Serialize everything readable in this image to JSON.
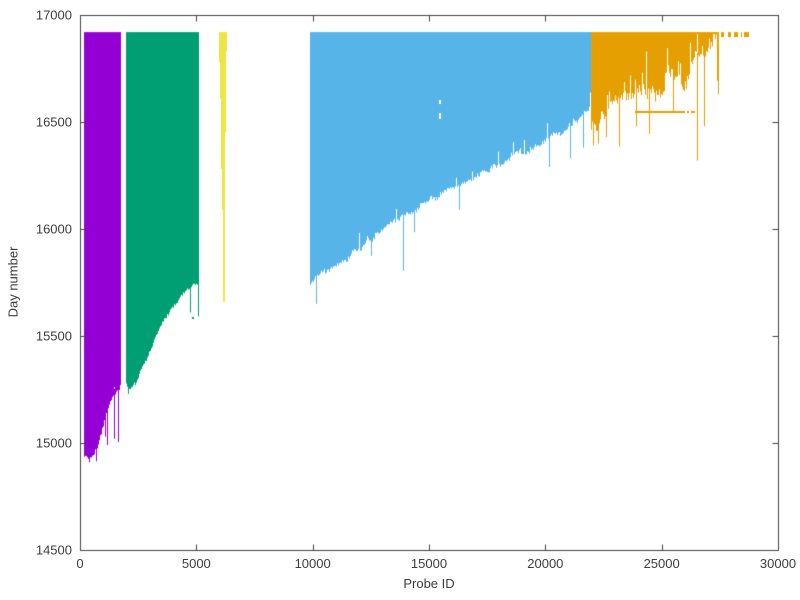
{
  "chart_data": {
    "type": "area",
    "subtype": "impulse-bands (one vertical line per probe, from first-seen day up to current day)",
    "title": "",
    "xlabel": "Probe ID",
    "ylabel": "Day number",
    "xlim": [
      0,
      30000
    ],
    "ylim": [
      14500,
      17000
    ],
    "xticks": [
      0,
      5000,
      10000,
      15000,
      20000,
      25000,
      30000
    ],
    "xtick_labels": [
      "0",
      "5000",
      "10000",
      "15000",
      "20000",
      "25000",
      "30000"
    ],
    "yticks": [
      14500,
      15000,
      15500,
      16000,
      16500,
      17000
    ],
    "ytick_labels": [
      "14500",
      "15000",
      "15500",
      "16000",
      "16500",
      "17000"
    ],
    "grid": false,
    "legend": "none",
    "frame_color": "#444444",
    "text_color": "#3d3d3d",
    "background_color": "#ffffff",
    "top_day": 16920,
    "bands": [
      {
        "name": "band-1-purple",
        "color": "#9400d3",
        "id_range": [
          170,
          1700
        ],
        "envelope": [
          [
            170,
            14940
          ],
          [
            300,
            14925
          ],
          [
            500,
            14935
          ],
          [
            700,
            14950
          ],
          [
            820,
            15000
          ],
          [
            950,
            15060
          ],
          [
            1070,
            15110
          ],
          [
            1200,
            15170
          ],
          [
            1320,
            15200
          ],
          [
            1450,
            15220
          ],
          [
            1580,
            15245
          ],
          [
            1700,
            15260
          ]
        ],
        "spikes": [
          [
            390,
            14910
          ],
          [
            700,
            14915
          ],
          [
            1080,
            15030
          ],
          [
            1160,
            14990
          ],
          [
            1480,
            15020
          ],
          [
            1620,
            15005
          ]
        ],
        "noise": 18,
        "gap_prob": 0.05,
        "gap_depth": 55,
        "seed": 11
      },
      {
        "name": "band-2-green",
        "color": "#009e73",
        "id_range": [
          1980,
          5072
        ],
        "envelope": [
          [
            1980,
            15270
          ],
          [
            2150,
            15250
          ],
          [
            2400,
            15285
          ],
          [
            2700,
            15360
          ],
          [
            3000,
            15430
          ],
          [
            3300,
            15505
          ],
          [
            3600,
            15570
          ],
          [
            3900,
            15620
          ],
          [
            4200,
            15665
          ],
          [
            4500,
            15700
          ],
          [
            4800,
            15730
          ],
          [
            5072,
            15748
          ]
        ],
        "spikes": [
          [
            2060,
            15230
          ],
          [
            4725,
            15610
          ],
          [
            5065,
            15592
          ]
        ],
        "dots": [
          [
            4810,
            15588
          ]
        ],
        "noise": 14,
        "gap_prob": 0.03,
        "gap_depth": 45,
        "seed": 22
      },
      {
        "name": "band-3-yellow",
        "color": "#f0e442",
        "impulses": [
          [
            6010,
            16780
          ],
          [
            6050,
            16610
          ],
          [
            6085,
            16500
          ],
          [
            6115,
            16280
          ],
          [
            6145,
            16090
          ],
          [
            6175,
            15860
          ],
          [
            6205,
            15660
          ],
          [
            6240,
            16450
          ],
          [
            6280,
            16830
          ]
        ],
        "seed": 33
      },
      {
        "name": "band-4-blue",
        "color": "#56b4e9",
        "id_range": [
          9900,
          21950
        ],
        "envelope": [
          [
            9900,
            15740
          ],
          [
            10200,
            15780
          ],
          [
            10600,
            15805
          ],
          [
            11000,
            15830
          ],
          [
            11400,
            15860
          ],
          [
            11900,
            15900
          ],
          [
            12400,
            15945
          ],
          [
            12900,
            15985
          ],
          [
            13400,
            16025
          ],
          [
            13900,
            16060
          ],
          [
            14400,
            16090
          ],
          [
            14900,
            16125
          ],
          [
            15400,
            16155
          ],
          [
            15900,
            16190
          ],
          [
            16400,
            16215
          ],
          [
            16900,
            16235
          ],
          [
            17400,
            16265
          ],
          [
            17900,
            16295
          ],
          [
            18400,
            16325
          ],
          [
            18900,
            16350
          ],
          [
            19400,
            16370
          ],
          [
            19900,
            16400
          ],
          [
            20300,
            16435
          ],
          [
            20700,
            16455
          ],
          [
            21100,
            16475
          ],
          [
            21400,
            16510
          ],
          [
            21700,
            16545
          ],
          [
            21950,
            16585
          ]
        ],
        "spikes": [
          [
            10150,
            15650
          ],
          [
            12500,
            15875
          ],
          [
            13900,
            15805
          ],
          [
            14350,
            15985
          ],
          [
            16300,
            16090
          ],
          [
            20150,
            16290
          ],
          [
            21050,
            16330
          ],
          [
            21600,
            16380
          ]
        ],
        "white_dashes": [
          [
            15430,
            16585,
            16605
          ],
          [
            15430,
            16515,
            16540
          ]
        ],
        "noise": 22,
        "gap_prob": 0.05,
        "gap_depth": 75,
        "seed": 44
      },
      {
        "name": "band-5-orange",
        "color": "#e69f00",
        "id_range": [
          21950,
          27430
        ],
        "envelope": [
          [
            21950,
            16455
          ],
          [
            22150,
            16480
          ],
          [
            22450,
            16515
          ],
          [
            22750,
            16550
          ],
          [
            23050,
            16570
          ],
          [
            23350,
            16590
          ],
          [
            23650,
            16605
          ],
          [
            23950,
            16625
          ],
          [
            24250,
            16655
          ],
          [
            24550,
            16640
          ],
          [
            24850,
            16625
          ],
          [
            25150,
            16700
          ],
          [
            25450,
            16745
          ],
          [
            25750,
            16715
          ],
          [
            26050,
            16685
          ],
          [
            26350,
            16790
          ],
          [
            26650,
            16800
          ],
          [
            26950,
            16815
          ],
          [
            27150,
            16850
          ],
          [
            27340,
            16860
          ],
          [
            27430,
            16625
          ]
        ],
        "spikes": [
          [
            22060,
            16390
          ],
          [
            22270,
            16400
          ],
          [
            22600,
            16430
          ],
          [
            23160,
            16385
          ],
          [
            23900,
            16480
          ],
          [
            24450,
            16445
          ],
          [
            25500,
            16550
          ],
          [
            26500,
            16320
          ],
          [
            26800,
            16480
          ]
        ],
        "h_segments": [
          [
            23850,
            26000,
            16550
          ],
          [
            26080,
            26180,
            16550
          ],
          [
            26280,
            26430,
            16550
          ]
        ],
        "top_dashes": [
          [
            27550,
            27700
          ],
          [
            27830,
            27980
          ],
          [
            28130,
            28280
          ],
          [
            28400,
            28470
          ],
          [
            28560,
            28760
          ]
        ],
        "noise": 55,
        "gap_prob": 0.15,
        "gap_depth": 170,
        "seed": 55
      }
    ]
  }
}
